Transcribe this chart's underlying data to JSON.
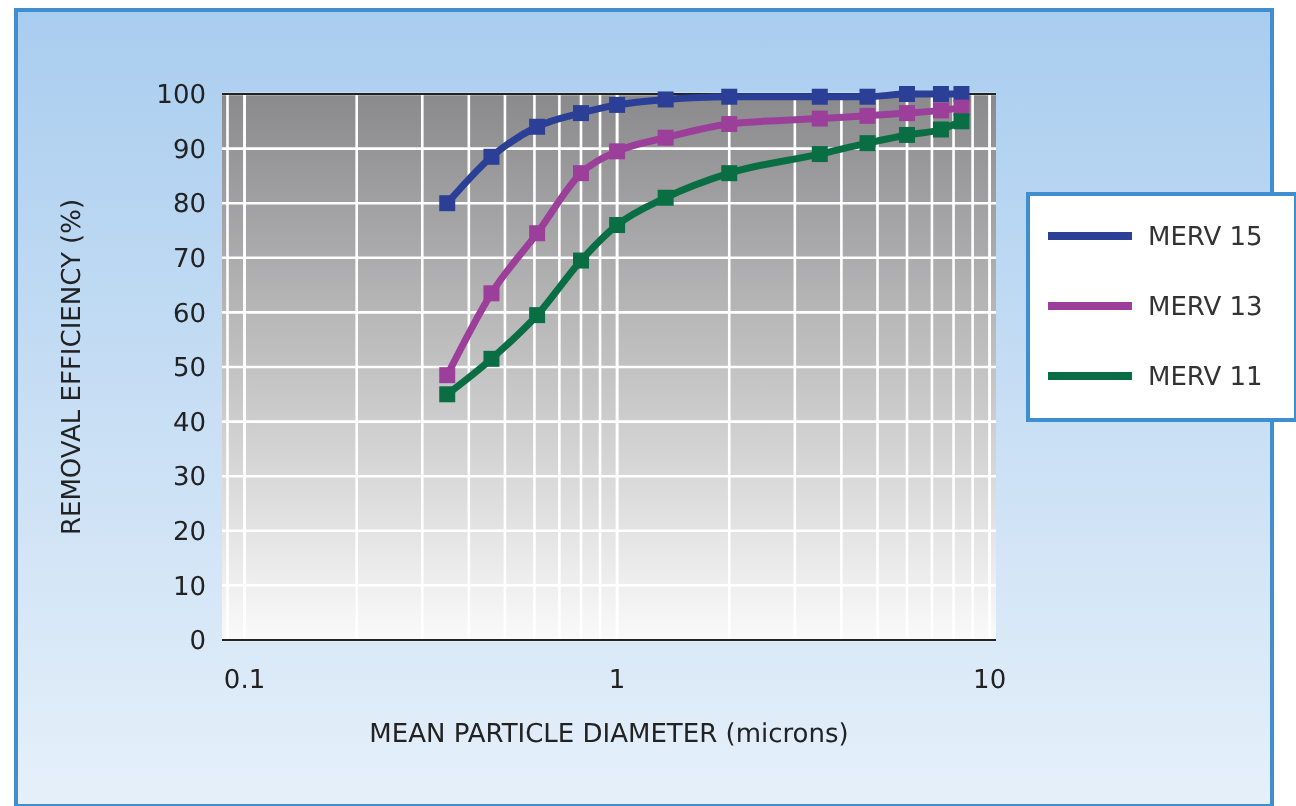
{
  "chart_data": {
    "type": "line",
    "xlabel": "MEAN PARTICLE DIAMETER (microns)",
    "ylabel": "REMOVAL EFFICIENCY (%)",
    "x": [
      0.35,
      0.46,
      0.61,
      0.8,
      1.0,
      1.35,
      2.0,
      3.5,
      4.7,
      6.0,
      7.4,
      8.4
    ],
    "series": [
      {
        "name": "MERV 15",
        "color": "#2b3f96",
        "values": [
          80,
          88.5,
          94,
          96.5,
          98,
          99,
          99.5,
          99.5,
          99.5,
          100,
          100,
          100
        ]
      },
      {
        "name": "MERV 13",
        "color": "#9b3f9a",
        "values": [
          48.5,
          63.5,
          74.5,
          85.5,
          89.5,
          92,
          94.5,
          95.5,
          96,
          96.5,
          97,
          97.5
        ]
      },
      {
        "name": "MERV 11",
        "color": "#0a6e45",
        "values": [
          45,
          51.5,
          59.5,
          69.5,
          76,
          81,
          85.5,
          89,
          91,
          92.5,
          93.5,
          95
        ]
      }
    ],
    "log": "x",
    "xlim": [
      0.087,
      10.4
    ],
    "xticks": [
      0.1,
      1,
      10
    ],
    "ylim": [
      0,
      100
    ],
    "yticks": [
      0,
      10,
      20,
      30,
      40,
      50,
      60,
      70,
      80,
      90,
      100
    ],
    "grid": true,
    "legend": "right",
    "marker": "square",
    "line_style": "solid"
  }
}
